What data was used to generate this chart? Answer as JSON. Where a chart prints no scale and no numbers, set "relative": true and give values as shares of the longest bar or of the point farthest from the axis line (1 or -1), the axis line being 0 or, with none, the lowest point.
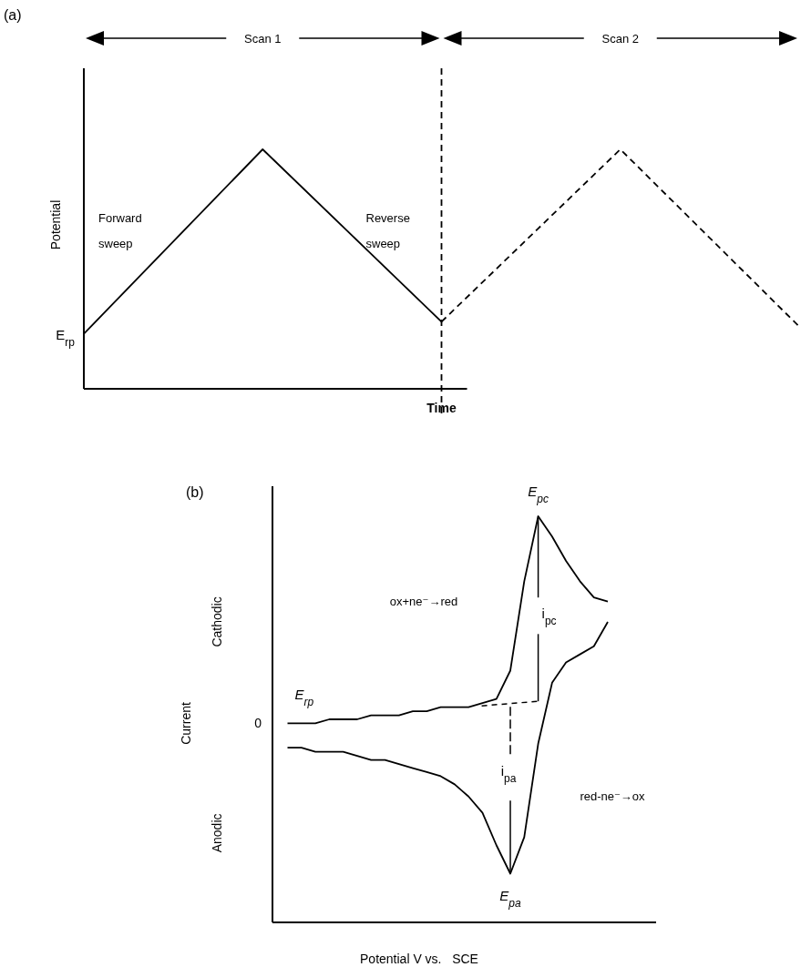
{
  "chart_data": [
    {
      "type": "line",
      "title": "(a)",
      "xlabel": "Time",
      "ylabel": "Potential",
      "relative": true,
      "categories": [
        null,
        null,
        null,
        null,
        null
      ],
      "series": [
        {
          "color": "#000000",
          "line_style": "solid",
          "values": [
            0.23,
            1,
            0.28,
            null,
            null
          ]
        },
        {
          "color": "#000000",
          "line_style": "dashed",
          "values": [
            null,
            null,
            0.28,
            1,
            0.26
          ]
        }
      ],
      "annotations": [
        "Scan 1",
        "Scan 2",
        "Forward sweep",
        "Reverse sweep",
        "E$_{rp}$"
      ]
    },
    {
      "type": "line",
      "title": "(b)",
      "xlabel": "Potential V vs.   SCE",
      "ylabel": "Current",
      "relative": true,
      "categories": [
        null,
        null,
        null,
        null,
        null,
        null,
        null,
        null,
        null,
        null,
        null,
        null,
        null,
        null,
        null,
        null,
        null,
        null,
        null,
        null,
        null,
        null,
        null,
        null
      ],
      "series": [
        {
          "color": "#000000",
          "line_style": "solid",
          "values": [
            0.49,
            0.49,
            0.49,
            0.5,
            0.5,
            0.5,
            0.51,
            0.51,
            0.51,
            0.52,
            0.52,
            0.53,
            0.53,
            0.53,
            0.54,
            0.55,
            0.62,
            0.84,
            1.0,
            0.95,
            0.89,
            0.84,
            0.8,
            0.79
          ]
        },
        {
          "color": "#000000",
          "line_style": "solid",
          "values": [
            0.43,
            0.43,
            0.42,
            0.42,
            0.42,
            0.41,
            0.4,
            0.4,
            0.39,
            0.38,
            0.37,
            0.36,
            0.34,
            0.31,
            0.27,
            0.19,
            0.12,
            0.21,
            0.44,
            0.59,
            0.64,
            0.66,
            0.68,
            0.74
          ]
        }
      ],
      "annotations": [
        "Cathodic",
        "Anodic",
        "ox+ne⁻→red",
        "red-ne⁻→ox",
        "E$_{pc}$",
        "E$_{pa}$",
        "E$_{rp}$",
        "i$_{pc}$",
        "i$_{pa}$",
        "0"
      ]
    }
  ]
}
